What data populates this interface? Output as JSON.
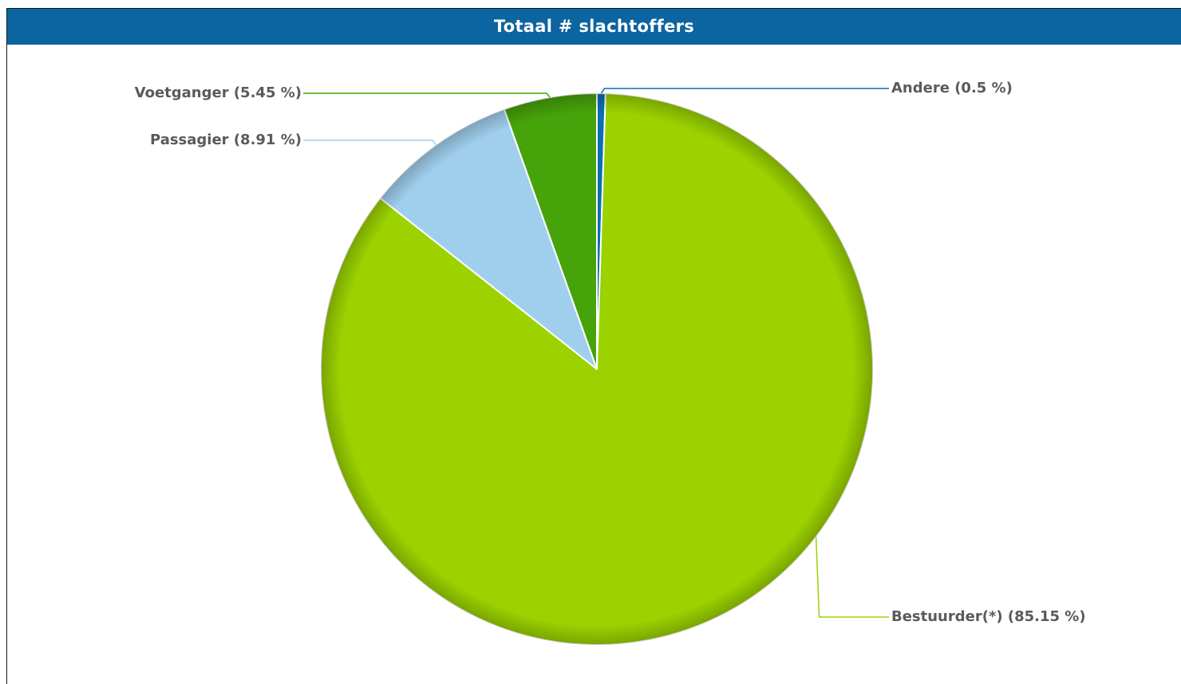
{
  "chart_data": {
    "type": "pie",
    "title": "Totaal # slachtoffers",
    "slices": [
      {
        "label": "Andere (0.5 %)",
        "value": 0.5,
        "color": "#0b6fb0"
      },
      {
        "label": "Bestuurder(*) (85.15 %)",
        "value": 85.15,
        "color": "#9bd200"
      },
      {
        "label": "Passagier (8.91 %)",
        "value": 8.91,
        "color": "#a0cfee"
      },
      {
        "label": "Voetganger (5.45 %)",
        "value": 5.45,
        "color": "#47a30a"
      }
    ],
    "start": "12 o'clock",
    "direction": "clockwise"
  },
  "colors": {
    "header_background": "#0c64a0",
    "header_text": "#ffffff",
    "label_text": "#5a5a5a"
  }
}
